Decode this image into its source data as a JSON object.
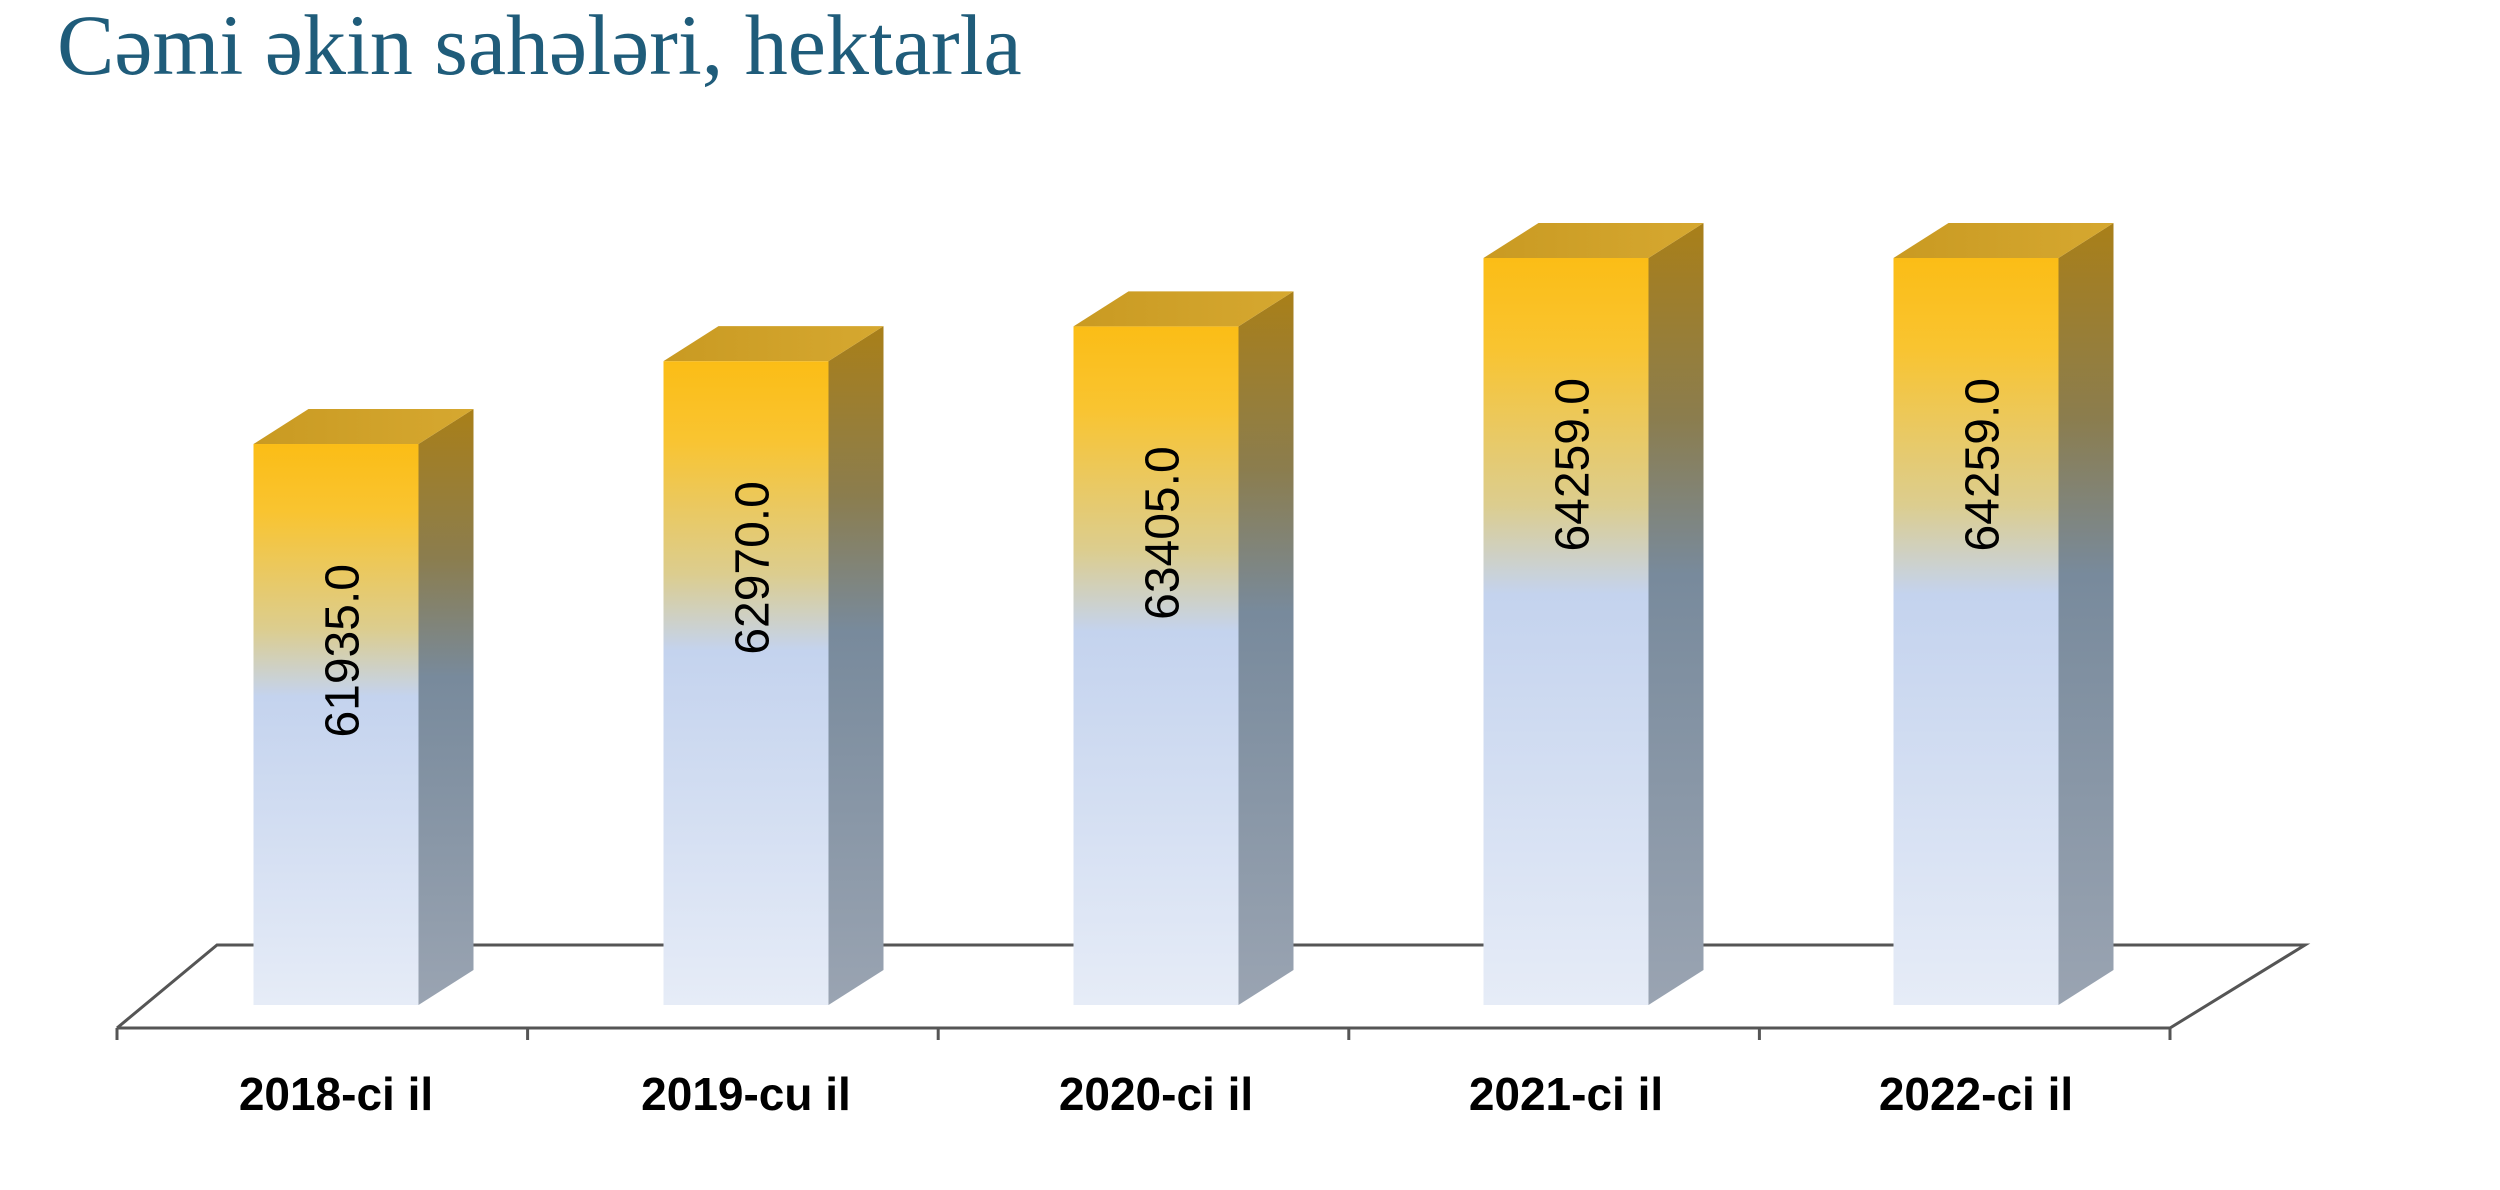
{
  "chart_data": {
    "type": "bar",
    "title": "Cəmi əkin sahələri, hektarla",
    "categories": [
      "2018-ci il",
      "2019-cu il",
      "2020-ci il",
      "2021-ci il",
      "2022-ci il"
    ],
    "values": [
      61935.0,
      62970.0,
      63405.0,
      64259.0,
      64259.0
    ],
    "data_labels": [
      "61935.0",
      "62970.0",
      "63405.0",
      "64259.0",
      "64259.0"
    ],
    "xlabel": "",
    "ylabel": "",
    "grid": false,
    "legend": "none",
    "style": "3d-columns",
    "colors": {
      "top_gold": "#fbbd16",
      "mid_blue": "#c4d3ee",
      "bottom_pale": "#e6ecf7",
      "title": "#1f5c7a",
      "label_text": "#000000",
      "floor_line": "#555555"
    }
  }
}
